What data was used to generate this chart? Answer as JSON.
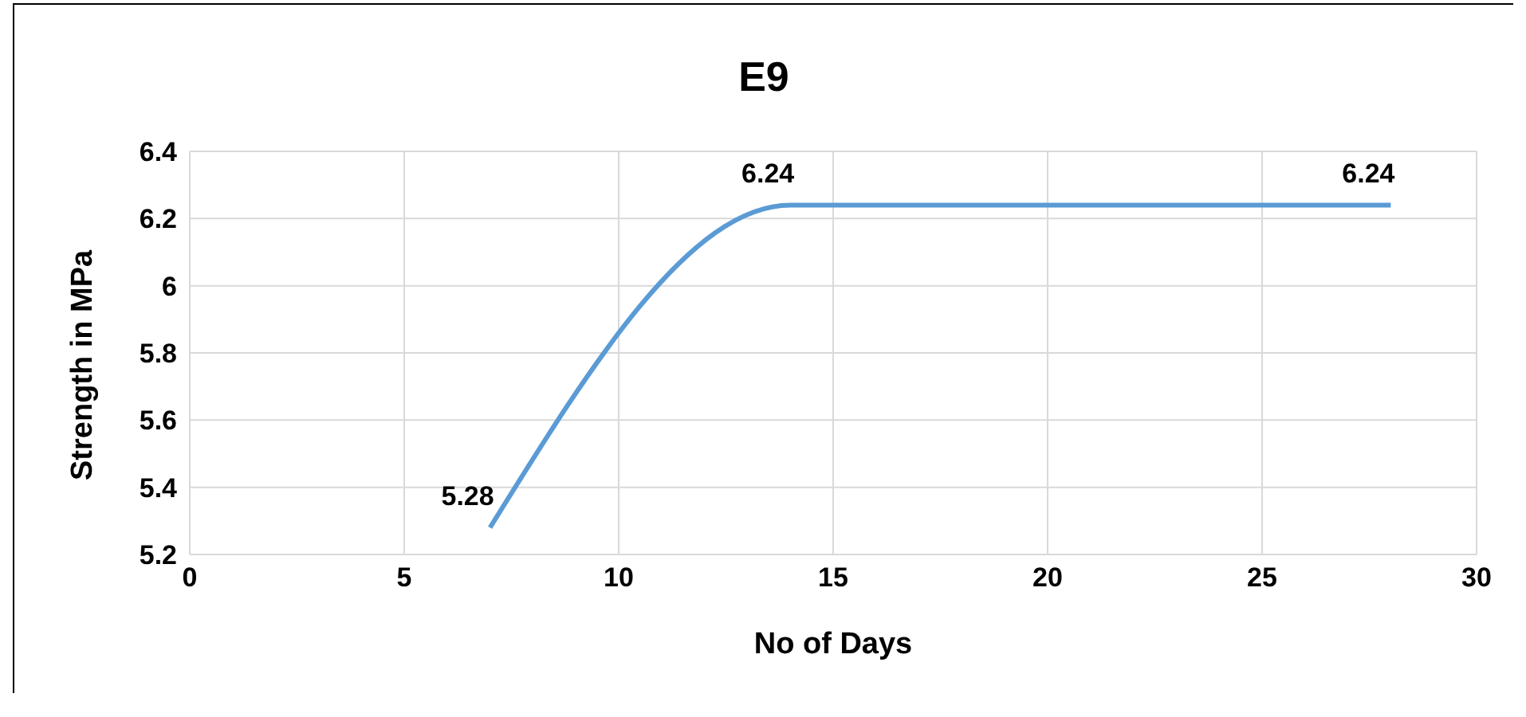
{
  "chart_data": {
    "type": "line",
    "title": "E9",
    "xlabel": "No of Days",
    "ylabel": "Strength in MPa",
    "x": [
      7,
      14,
      28
    ],
    "series": [
      {
        "color": "#5b9bd5",
        "values": [
          5.28,
          6.24,
          6.24
        ]
      }
    ],
    "xlim": [
      0,
      30
    ],
    "xticks": [
      0,
      5,
      10,
      15,
      20,
      25,
      30
    ],
    "ylim": [
      5.2,
      6.4
    ],
    "yticks": [
      5.2,
      5.4,
      5.6,
      5.8,
      6,
      6.2,
      6.4
    ],
    "grid": true,
    "marker": "none",
    "line_style": "solid",
    "data_labels": true
  }
}
